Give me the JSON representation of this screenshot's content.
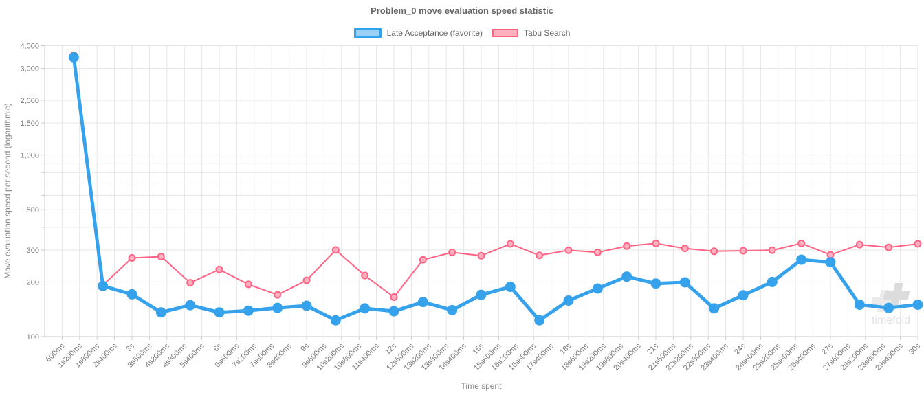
{
  "page": {
    "title": "Problem_0 move evaluation speed statistic"
  },
  "watermark": {
    "text": "timefold"
  },
  "chart_data": {
    "type": "line",
    "title": "Problem_0 move evaluation speed statistic",
    "xlabel": "Time spent",
    "ylabel": "Move evaluation speed per second (logarithmic)",
    "y_scale": "log",
    "grid": true,
    "legend_position": "top-center",
    "x_domain_ms": [
      0,
      30000
    ],
    "y_domain": [
      100,
      4000
    ],
    "x_tick_interval_ms": 600,
    "x_tick_labels": [
      "600ms",
      "1s200ms",
      "1s800ms",
      "2s400ms",
      "3s",
      "3s600ms",
      "4s200ms",
      "4s800ms",
      "5s400ms",
      "6s",
      "6s600ms",
      "7s200ms",
      "7s800ms",
      "8s400ms",
      "9s",
      "9s600ms",
      "10s200ms",
      "10s800ms",
      "11s400ms",
      "12s",
      "12s600ms",
      "13s200ms",
      "13s800ms",
      "14s400ms",
      "15s",
      "15s600ms",
      "16s200ms",
      "16s800ms",
      "17s400ms",
      "18s",
      "18s600ms",
      "19s200ms",
      "19s800ms",
      "20s400ms",
      "21s",
      "21s600ms",
      "22s200ms",
      "22s800ms",
      "23s400ms",
      "24s",
      "24s600ms",
      "25s200ms",
      "25s800ms",
      "26s400ms",
      "27s",
      "27s600ms",
      "28s200ms",
      "28s800ms",
      "29s400ms",
      "30s"
    ],
    "y_ticks": [
      {
        "value": 100,
        "label": "100"
      },
      {
        "value": 200,
        "label": "200"
      },
      {
        "value": 300,
        "label": "300"
      },
      {
        "value": 500,
        "label": "500"
      },
      {
        "value": 1000,
        "label": "1,000"
      },
      {
        "value": 1500,
        "label": "1,500"
      },
      {
        "value": 2000,
        "label": "2,000"
      },
      {
        "value": 3000,
        "label": "3,000"
      },
      {
        "value": 4000,
        "label": "4,000"
      }
    ],
    "y_minor_gridlines": [
      400,
      600,
      700,
      800,
      900
    ],
    "legend": [
      {
        "label": "Late Acceptance (favorite)",
        "fill": "#9ad0f5",
        "border": "#36a2eb",
        "border_width": 3
      },
      {
        "label": "Tabu Search",
        "fill": "#ffb1c1",
        "border": "#ff6384",
        "border_width": 2
      }
    ],
    "series": [
      {
        "name": "Late Acceptance (favorite)",
        "line_color": "#36a2eb",
        "point_fill": "#36a2eb",
        "point_stroke": "#36a2eb",
        "line_width": 5,
        "point_radius": 6.5,
        "x_ms": [
          1000,
          2000,
          3000,
          4000,
          5000,
          6000,
          7000,
          8000,
          9000,
          10000,
          11000,
          12000,
          13000,
          14000,
          15000,
          16000,
          17000,
          18000,
          19000,
          20000,
          21000,
          22000,
          23000,
          24000,
          25000,
          26000,
          27000,
          28000,
          29000,
          30000
        ],
        "values": [
          3450,
          190,
          171,
          136,
          149,
          136,
          139,
          144,
          148,
          123,
          143,
          138,
          155,
          140,
          170,
          188,
          123,
          158,
          184,
          214,
          196,
          199,
          143,
          169,
          200,
          265,
          257,
          150,
          144,
          150
        ]
      },
      {
        "name": "Tabu Search",
        "line_color": "#ff6384",
        "point_fill": "#ffb1c1",
        "point_stroke": "#ff6384",
        "line_width": 2,
        "point_radius": 4.5,
        "x_ms": [
          1000,
          2000,
          3000,
          4000,
          5000,
          6000,
          7000,
          8000,
          9000,
          10000,
          11000,
          12000,
          13000,
          14000,
          15000,
          16000,
          17000,
          18000,
          19000,
          20000,
          21000,
          22000,
          23000,
          24000,
          25000,
          26000,
          27000,
          28000,
          29000,
          30000
        ],
        "values": [
          3550,
          192,
          271,
          276,
          198,
          234,
          194,
          170,
          204,
          300,
          217,
          165,
          265,
          291,
          279,
          324,
          280,
          299,
          291,
          315,
          326,
          306,
          295,
          297,
          299,
          326,
          282,
          321,
          310,
          324
        ]
      }
    ],
    "style": {
      "gridline_color": "#e6e6e6",
      "axis_line_color": "#c9c9c9",
      "tick_label_color": "#7a7a7a",
      "watermark_color": "#e2e2e2",
      "watermark_plus_light": "#ebebeb",
      "watermark_plus_dark": "#dcdcdc"
    }
  }
}
